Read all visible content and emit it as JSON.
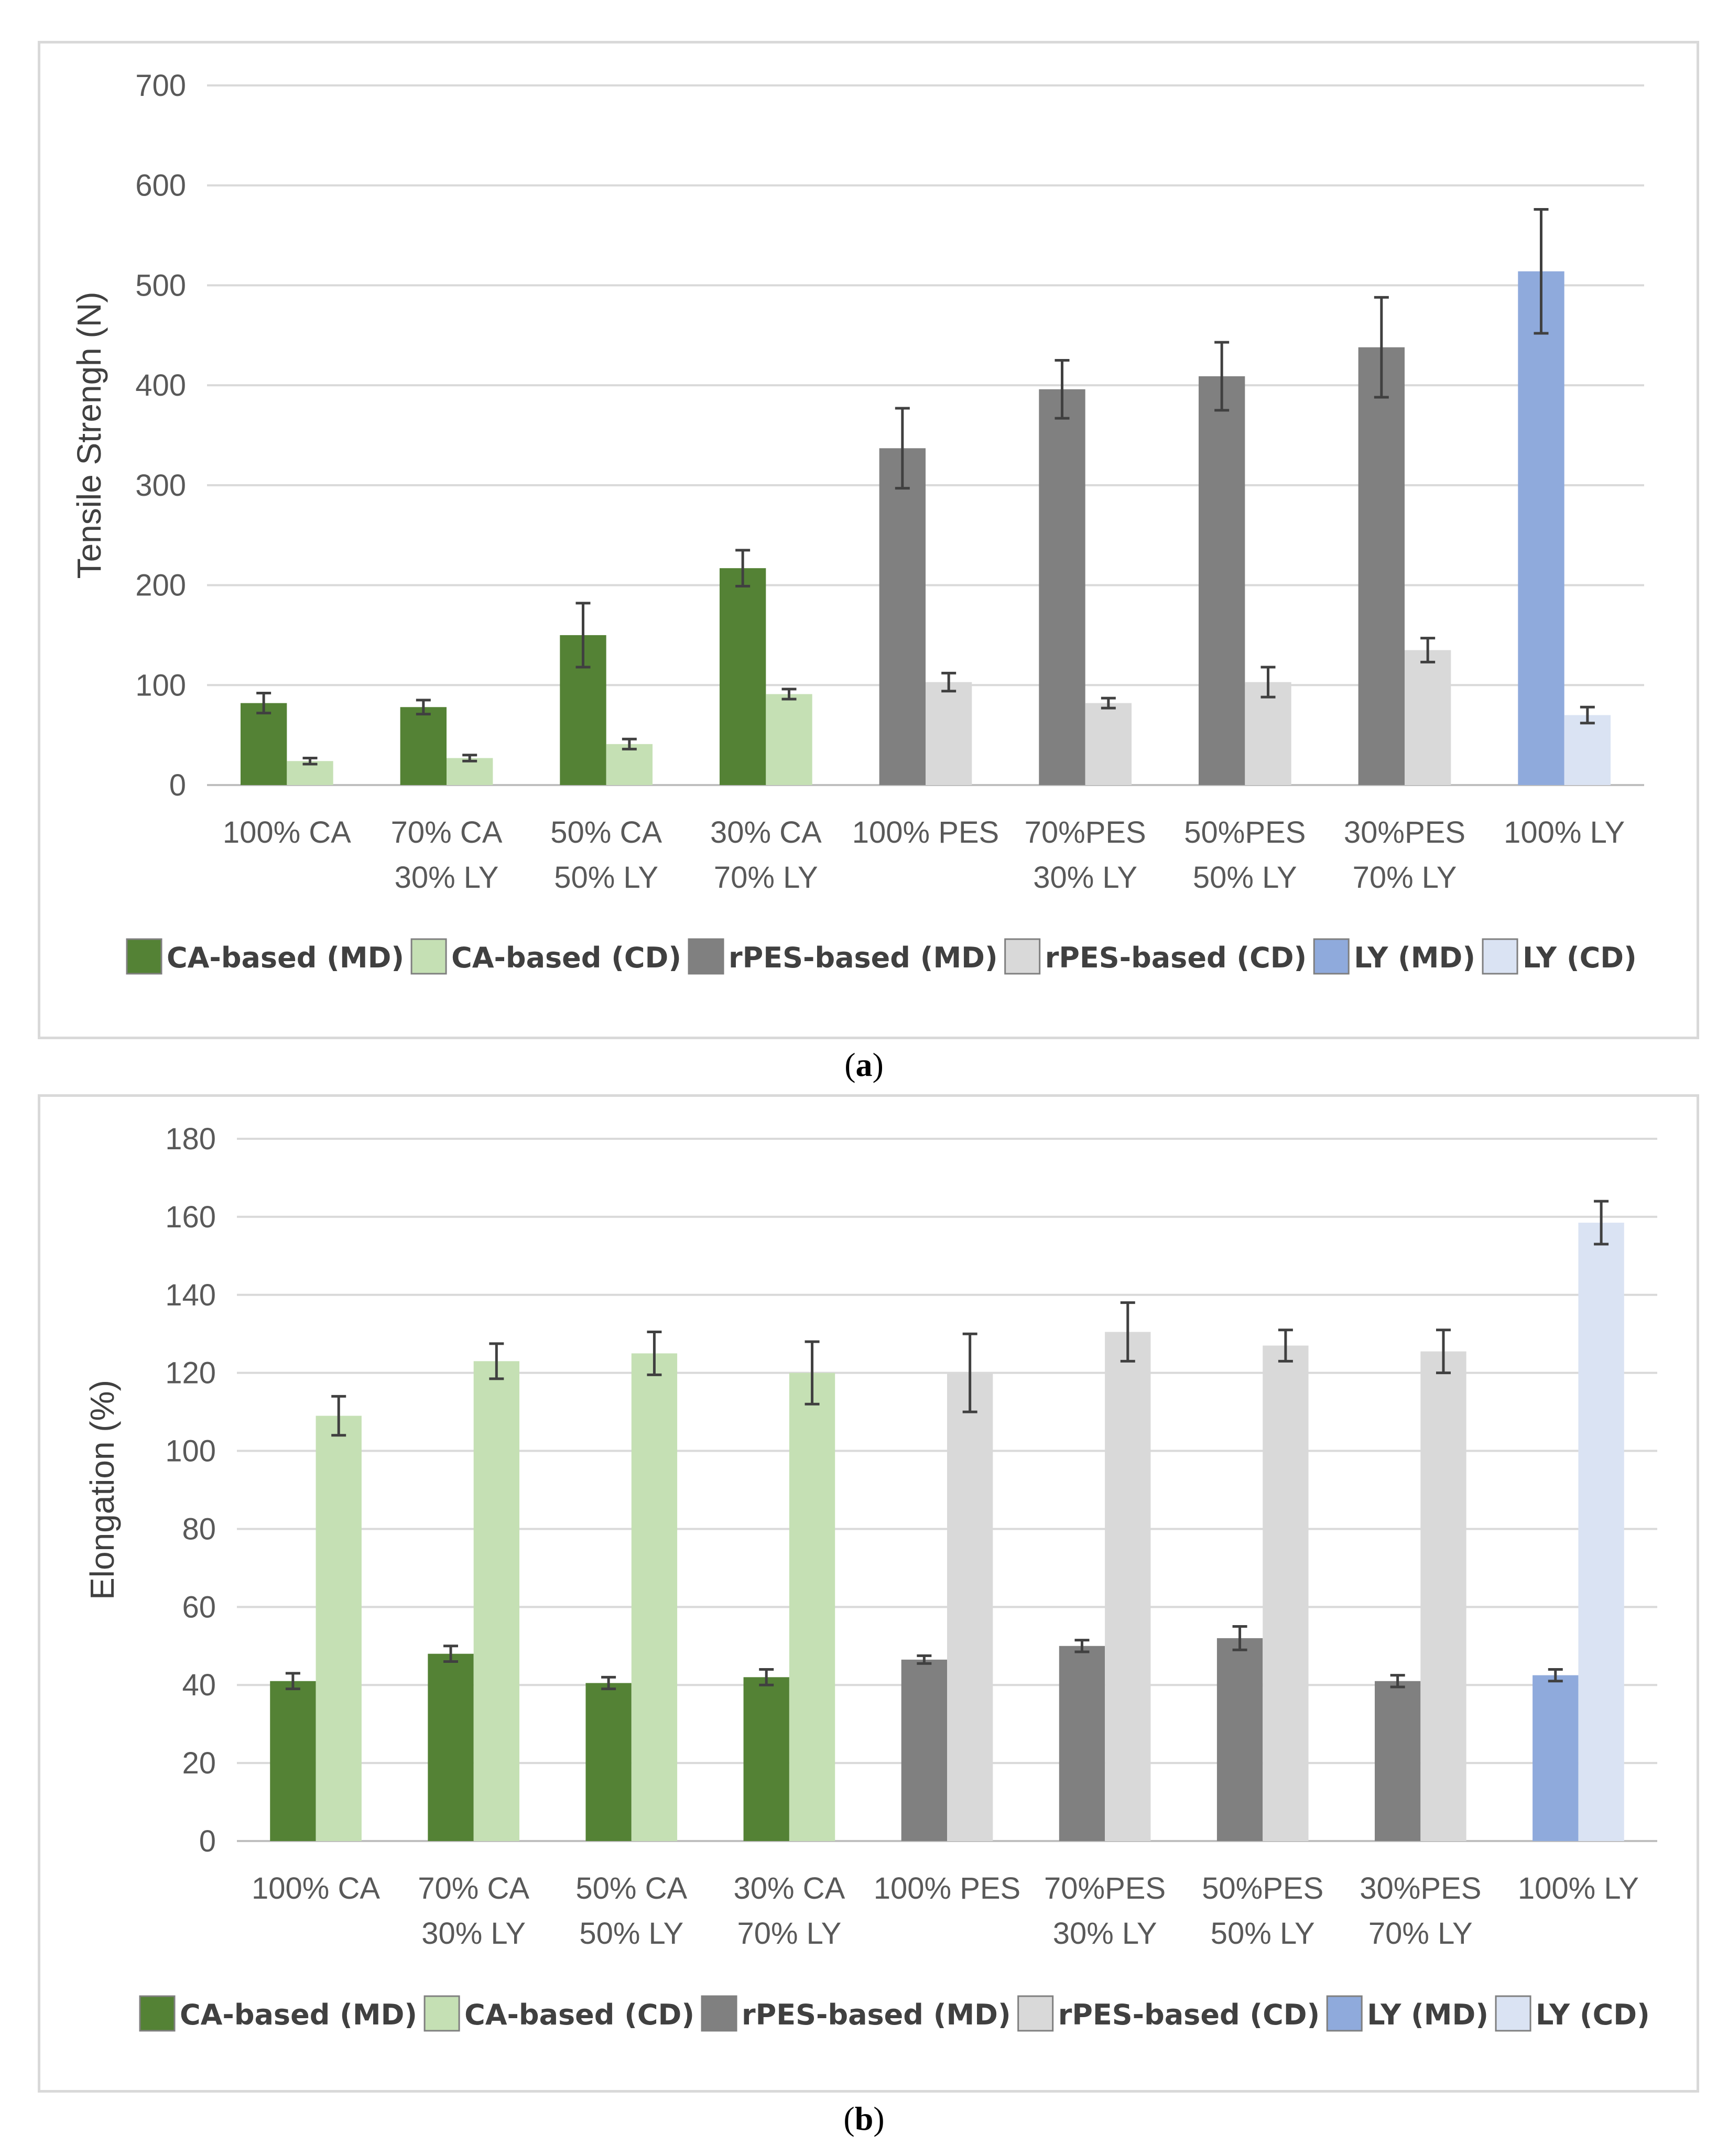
{
  "chart_data": [
    {
      "type": "bar",
      "id": "a",
      "caption": "a",
      "title": "",
      "xlabel": "",
      "ylabel": "Tensile Strengh (N)",
      "ylim": [
        0,
        700
      ],
      "yticks": [
        0,
        100,
        200,
        300,
        400,
        500,
        600,
        700
      ],
      "grid": true,
      "legend_position": "bottom",
      "categories": [
        [
          "100% CA"
        ],
        [
          "70% CA",
          "30% LY"
        ],
        [
          "50% CA",
          "50% LY"
        ],
        [
          "30% CA",
          "70% LY"
        ],
        [
          "100% PES"
        ],
        [
          "70%PES",
          "30% LY"
        ],
        [
          "50%PES",
          "50% LY"
        ],
        [
          "30%PES",
          "70% LY"
        ],
        [
          "100% LY"
        ]
      ],
      "legend": [
        {
          "name": "CA-based (MD)",
          "color": "#548235"
        },
        {
          "name": "CA-based (CD)",
          "color": "#c5e0b4"
        },
        {
          "name": "rPES-based (MD)",
          "color": "#808080"
        },
        {
          "name": "rPES-based (CD)",
          "color": "#d9d9d9"
        },
        {
          "name": "LY (MD)",
          "color": "#8faadc"
        },
        {
          "name": "LY (CD)",
          "color": "#dae3f3"
        }
      ],
      "bars": [
        [
          {
            "series": 0,
            "value": 82,
            "error": 10
          },
          {
            "series": 1,
            "value": 24,
            "error": 3
          }
        ],
        [
          {
            "series": 0,
            "value": 78,
            "error": 7
          },
          {
            "series": 1,
            "value": 27,
            "error": 3
          }
        ],
        [
          {
            "series": 0,
            "value": 150,
            "error": 32
          },
          {
            "series": 1,
            "value": 41,
            "error": 5
          }
        ],
        [
          {
            "series": 0,
            "value": 217,
            "error": 18
          },
          {
            "series": 1,
            "value": 91,
            "error": 5
          }
        ],
        [
          {
            "series": 2,
            "value": 337,
            "error": 40
          },
          {
            "series": 3,
            "value": 103,
            "error": 9
          }
        ],
        [
          {
            "series": 2,
            "value": 396,
            "error": 29
          },
          {
            "series": 3,
            "value": 82,
            "error": 5
          }
        ],
        [
          {
            "series": 2,
            "value": 409,
            "error": 34
          },
          {
            "series": 3,
            "value": 103,
            "error": 15
          }
        ],
        [
          {
            "series": 2,
            "value": 438,
            "error": 50
          },
          {
            "series": 3,
            "value": 135,
            "error": 12
          }
        ],
        [
          {
            "series": 4,
            "value": 514,
            "error": 62
          },
          {
            "series": 5,
            "value": 70,
            "error": 8
          }
        ]
      ]
    },
    {
      "type": "bar",
      "id": "b",
      "caption": "b",
      "title": "",
      "xlabel": "",
      "ylabel": "Elongation (%)",
      "ylim": [
        0,
        180
      ],
      "yticks": [
        0,
        20,
        40,
        60,
        80,
        100,
        120,
        140,
        160,
        180
      ],
      "grid": true,
      "legend_position": "bottom",
      "categories": [
        [
          "100% CA"
        ],
        [
          "70% CA",
          "30% LY"
        ],
        [
          "50% CA",
          "50% LY"
        ],
        [
          "30% CA",
          "70% LY"
        ],
        [
          "100% PES"
        ],
        [
          "70%PES",
          "30% LY"
        ],
        [
          "50%PES",
          "50% LY"
        ],
        [
          "30%PES",
          "70% LY"
        ],
        [
          "100% LY"
        ]
      ],
      "legend": [
        {
          "name": "CA-based (MD)",
          "color": "#548235"
        },
        {
          "name": "CA-based (CD)",
          "color": "#c5e0b4"
        },
        {
          "name": "rPES-based (MD)",
          "color": "#808080"
        },
        {
          "name": "rPES-based (CD)",
          "color": "#d9d9d9"
        },
        {
          "name": "LY (MD)",
          "color": "#8faadc"
        },
        {
          "name": "LY (CD)",
          "color": "#dae3f3"
        }
      ],
      "bars": [
        [
          {
            "series": 0,
            "value": 41,
            "error": 2
          },
          {
            "series": 1,
            "value": 109,
            "error": 5
          }
        ],
        [
          {
            "series": 0,
            "value": 48,
            "error": 2
          },
          {
            "series": 1,
            "value": 123,
            "error": 4.5
          }
        ],
        [
          {
            "series": 0,
            "value": 40.5,
            "error": 1.5
          },
          {
            "series": 1,
            "value": 125,
            "error": 5.5
          }
        ],
        [
          {
            "series": 0,
            "value": 42,
            "error": 2
          },
          {
            "series": 1,
            "value": 120,
            "error": 8
          }
        ],
        [
          {
            "series": 2,
            "value": 46.5,
            "error": 1
          },
          {
            "series": 3,
            "value": 120,
            "error": 10
          }
        ],
        [
          {
            "series": 2,
            "value": 50,
            "error": 1.5
          },
          {
            "series": 3,
            "value": 130.5,
            "error": 7.5
          }
        ],
        [
          {
            "series": 2,
            "value": 52,
            "error": 3
          },
          {
            "series": 3,
            "value": 127,
            "error": 4
          }
        ],
        [
          {
            "series": 2,
            "value": 41,
            "error": 1.5
          },
          {
            "series": 3,
            "value": 125.5,
            "error": 5.5
          }
        ],
        [
          {
            "series": 4,
            "value": 42.5,
            "error": 1.5
          },
          {
            "series": 5,
            "value": 158.5,
            "error": 5.5
          }
        ]
      ]
    }
  ]
}
